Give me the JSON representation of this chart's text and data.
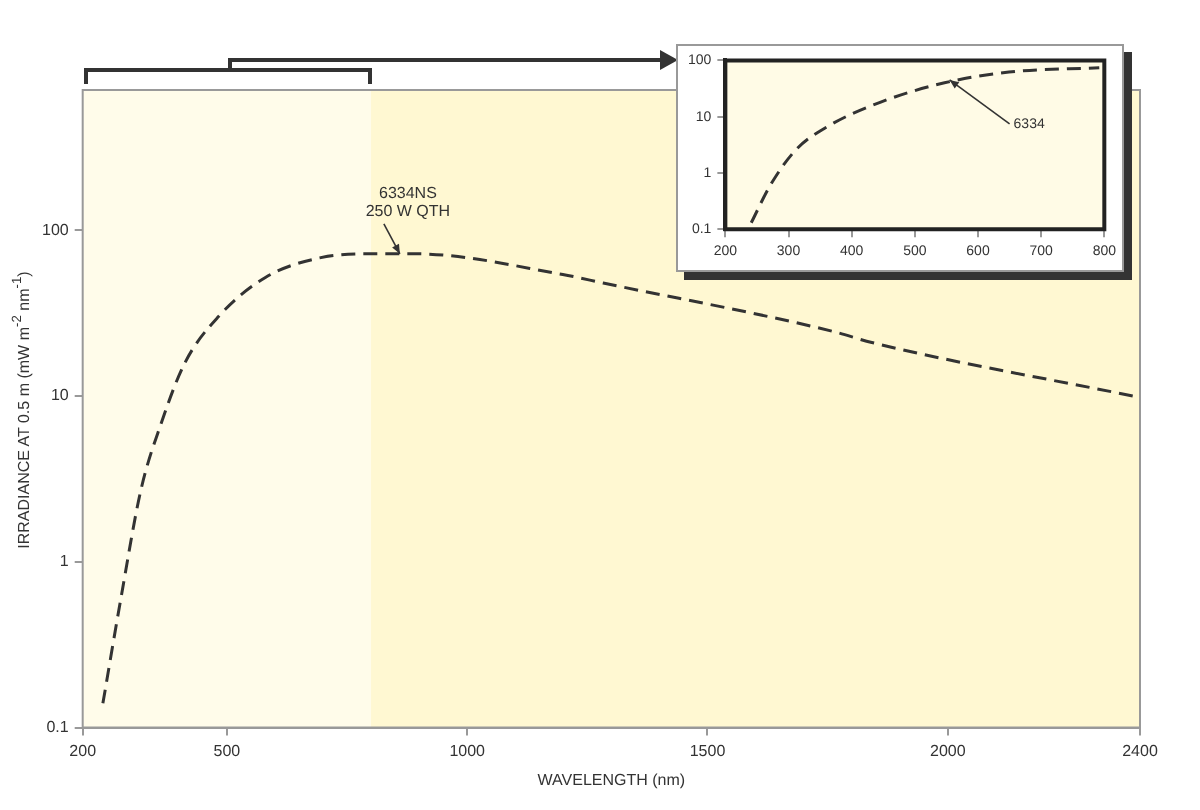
{
  "chart_data": [
    {
      "type": "line",
      "xlabel": "WAVELENGTH (nm)",
      "ylabel": "IRRADIANCE AT 0.5 m (mW m$^{-2}$ nm$^{-1}$)",
      "log": "y",
      "xlim": [
        200,
        2400
      ],
      "ylim": [
        0.1,
        700
      ],
      "xticks": [
        200,
        500,
        1000,
        1500,
        2000,
        2400
      ],
      "yticks": [
        0.1,
        1,
        10,
        100
      ],
      "legend": false,
      "marker": "none",
      "line_style": "dashed",
      "bands": [
        {
          "axis": "x",
          "from": 200,
          "to": 800,
          "color": "#fffcea"
        }
      ],
      "annotations": [
        {
          "text": "6334NS 250 W QTH",
          "x": 860,
          "y": 72
        }
      ],
      "series": [
        {
          "color": "#333333",
          "x": [
            242,
            279,
            321,
            363,
            412,
            482,
            581,
            693,
            805,
            890,
            1199,
            1283,
            1761,
            1842,
            2400
          ],
          "values": [
            0.14,
            0.59,
            2.7,
            6.8,
            15.7,
            30,
            52,
            68,
            72,
            72,
            54,
            48,
            24.5,
            21,
            9.8
          ]
        }
      ]
    },
    {
      "type": "line",
      "log": "y",
      "xlim": [
        200,
        800
      ],
      "ylim": [
        0.1,
        100
      ],
      "xticks": [
        200,
        300,
        400,
        500,
        600,
        700,
        800
      ],
      "yticks": [
        0.1,
        1,
        10,
        100
      ],
      "legend": false,
      "marker": "none",
      "line_style": "dashed",
      "annotations": [
        {
          "text": "6334",
          "x": 555,
          "y": 45
        }
      ],
      "series": [
        {
          "color": "#333333",
          "x": [
            241,
            271,
            312,
            363,
            445,
            547,
            649,
            792
          ],
          "values": [
            0.13,
            0.6,
            2.6,
            6.8,
            18,
            40,
            62,
            74
          ]
        }
      ]
    }
  ]
}
